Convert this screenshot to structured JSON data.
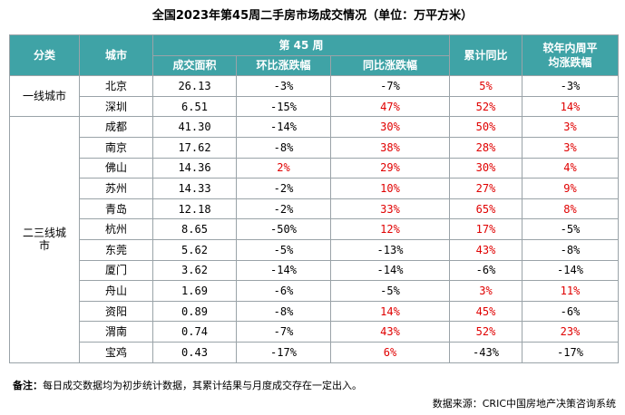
{
  "title": "全国2023年第45周二手房市场成交情况（单位：万平方米）",
  "headers": {
    "category": "分类",
    "city": "城市",
    "week": "第 45 周",
    "volume": "成交面积",
    "mom": "环比涨跌幅",
    "yoy": "同比涨跌幅",
    "ytd": "累计同比",
    "avg_line1": "较年内周平",
    "avg_line2": "均涨跌幅"
  },
  "tiers": [
    {
      "label": "一线城市",
      "rows": 2
    },
    {
      "label": "二三线城市",
      "rows": 12
    }
  ],
  "rows": [
    {
      "city": "北京",
      "volume": "26.13",
      "mom": "-3%",
      "yoy": "-7%",
      "ytd": "5%",
      "avg": "-3%"
    },
    {
      "city": "深圳",
      "volume": "6.51",
      "mom": "-15%",
      "yoy": "47%",
      "ytd": "52%",
      "avg": "14%"
    },
    {
      "city": "成都",
      "volume": "41.30",
      "mom": "-14%",
      "yoy": "30%",
      "ytd": "50%",
      "avg": "3%"
    },
    {
      "city": "南京",
      "volume": "17.62",
      "mom": "-8%",
      "yoy": "38%",
      "ytd": "28%",
      "avg": "3%"
    },
    {
      "city": "佛山",
      "volume": "14.36",
      "mom": "2%",
      "yoy": "29%",
      "ytd": "30%",
      "avg": "4%"
    },
    {
      "city": "苏州",
      "volume": "14.33",
      "mom": "-2%",
      "yoy": "10%",
      "ytd": "27%",
      "avg": "9%"
    },
    {
      "city": "青岛",
      "volume": "12.18",
      "mom": "-2%",
      "yoy": "33%",
      "ytd": "65%",
      "avg": "8%"
    },
    {
      "city": "杭州",
      "volume": "8.65",
      "mom": "-50%",
      "yoy": "12%",
      "ytd": "17%",
      "avg": "-5%"
    },
    {
      "city": "东莞",
      "volume": "5.62",
      "mom": "-5%",
      "yoy": "-13%",
      "ytd": "43%",
      "avg": "-8%"
    },
    {
      "city": "厦门",
      "volume": "3.62",
      "mom": "-14%",
      "yoy": "-14%",
      "ytd": "-6%",
      "avg": "-14%"
    },
    {
      "city": "舟山",
      "volume": "1.69",
      "mom": "-6%",
      "yoy": "-5%",
      "ytd": "3%",
      "avg": "11%"
    },
    {
      "city": "资阳",
      "volume": "0.89",
      "mom": "-8%",
      "yoy": "14%",
      "ytd": "45%",
      "avg": "-6%"
    },
    {
      "city": "渭南",
      "volume": "0.74",
      "mom": "-7%",
      "yoy": "43%",
      "ytd": "52%",
      "avg": "23%"
    },
    {
      "city": "宝鸡",
      "volume": "0.43",
      "mom": "-17%",
      "yoy": "6%",
      "ytd": "-43%",
      "avg": "-17%"
    }
  ],
  "note_label": "备注：",
  "note_text": "每日成交数据均为初步统计数据，其累计结果与月度成交存在一定出入。",
  "source": "数据来源：CRIC中国房地产决策咨询系统",
  "colors": {
    "header_bg": "#3fa3a6",
    "positive": "#e00000",
    "negative": "#000000"
  }
}
